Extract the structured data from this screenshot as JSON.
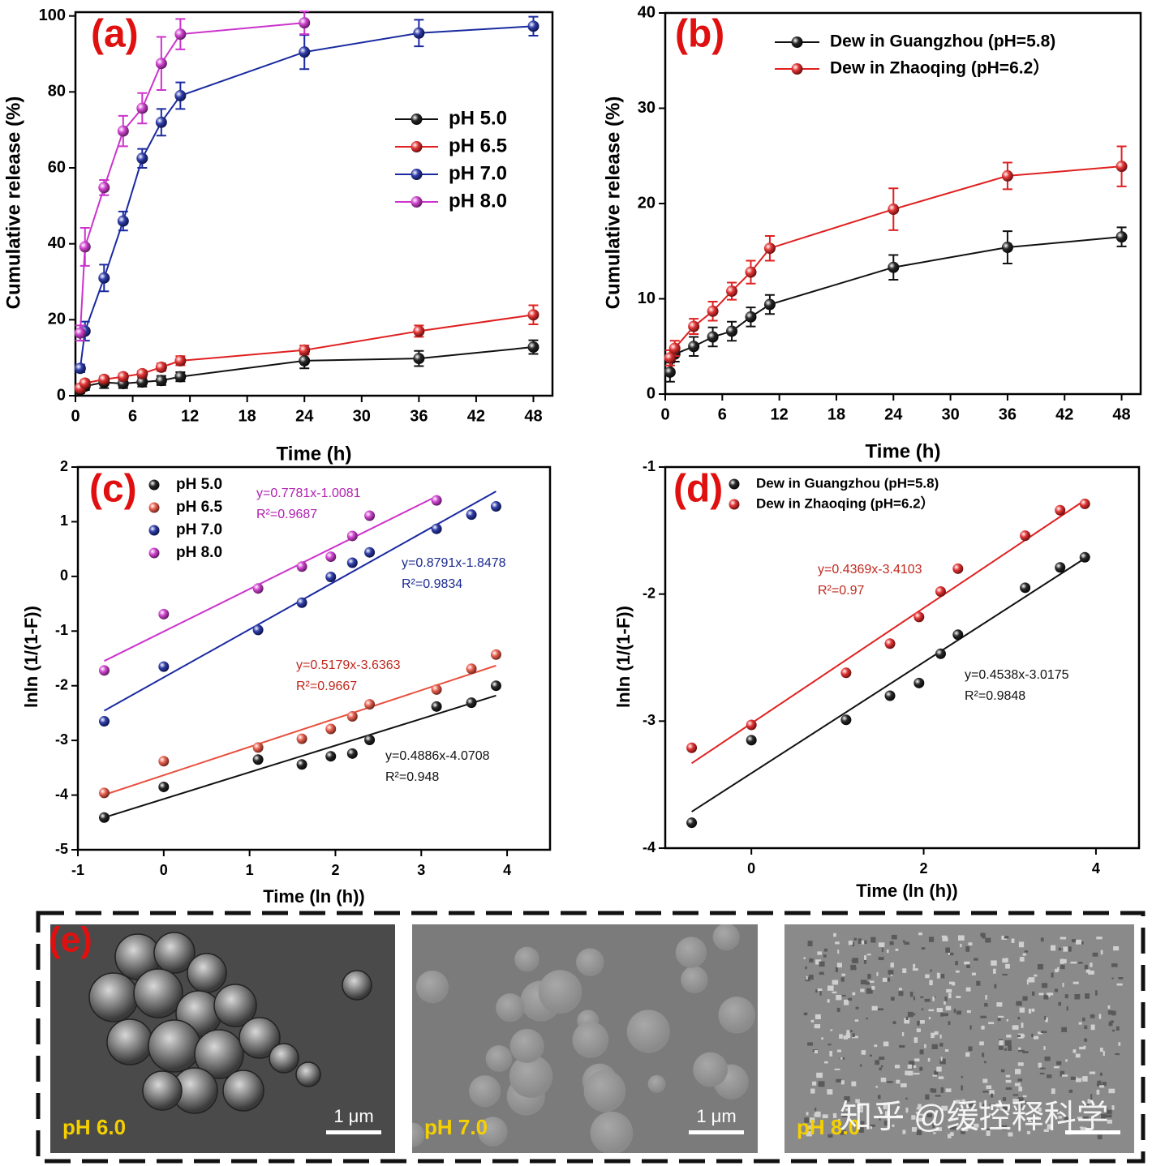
{
  "chart_data": [
    {
      "type": "line",
      "panel_label": "(a)",
      "xlabel": "Time (h)",
      "ylabel": "Cumulative release (%)",
      "x": [
        0.5,
        1,
        3,
        5,
        7,
        9,
        11,
        24,
        36,
        48
      ],
      "xlim": [
        0,
        50
      ],
      "ylim": [
        0,
        101
      ],
      "xticks": [
        0,
        6,
        12,
        18,
        24,
        30,
        36,
        42,
        48
      ],
      "yticks": [
        0,
        20,
        40,
        60,
        80,
        100
      ],
      "legend": "upper right",
      "series": [
        {
          "name": "pH 5.0",
          "color": "#111111",
          "values": [
            1.5,
            2.5,
            3.5,
            3.2,
            3.6,
            4.0,
            5.0,
            9.2,
            9.8,
            12.8
          ],
          "errors": [
            0.8,
            1,
            1.5,
            1.2,
            1.2,
            1.2,
            1.2,
            2,
            2,
            1.8
          ]
        },
        {
          "name": "pH 6.5",
          "color": "#e02020",
          "values": [
            2.0,
            3.3,
            4.3,
            5.0,
            5.8,
            7.5,
            9.2,
            12.0,
            17.0,
            21.3
          ],
          "errors": [
            0.8,
            0.8,
            0.8,
            0.8,
            0.8,
            1,
            1.2,
            1.2,
            1.5,
            2.5
          ]
        },
        {
          "name": "pH 7.0",
          "color": "#1a2aa0",
          "values": [
            7.2,
            17.0,
            31.0,
            46.0,
            62.5,
            72.0,
            79.0,
            90.5,
            95.5,
            97.3
          ],
          "errors": [
            1,
            2.5,
            3.5,
            2.5,
            2.5,
            3.5,
            3.5,
            4.5,
            3.5,
            2.5
          ]
        },
        {
          "name": "pH 8.0",
          "color": "#cc33cc",
          "values": [
            16.5,
            39.2,
            54.8,
            69.7,
            75.7,
            87.5,
            95.2,
            98.2,
            null,
            null
          ],
          "errors": [
            2,
            5,
            2,
            4,
            4,
            7,
            4,
            3,
            null,
            null
          ]
        }
      ]
    },
    {
      "type": "line",
      "panel_label": "(b)",
      "xlabel": "Time (h)",
      "ylabel": "Cumulative release (%)",
      "x": [
        0.5,
        1,
        3,
        5,
        7,
        9,
        11,
        24,
        36,
        48
      ],
      "xlim": [
        0,
        50
      ],
      "ylim": [
        0,
        40
      ],
      "xticks": [
        0,
        6,
        12,
        18,
        24,
        30,
        36,
        42,
        48
      ],
      "yticks": [
        0,
        10,
        20,
        30,
        40
      ],
      "legend": "upper left",
      "series": [
        {
          "name": "Dew in Guangzhou (pH=5.8)",
          "color": "#111111",
          "values": [
            2.3,
            4.2,
            5.0,
            6.0,
            6.6,
            8.1,
            9.4,
            13.3,
            15.4,
            16.5
          ],
          "errors": [
            1,
            0.8,
            1,
            1,
            1,
            1,
            1,
            1.3,
            1.7,
            1
          ]
        },
        {
          "name": "Dew in Zhaoqing (pH=6.2）",
          "color": "#e02020",
          "values": [
            3.8,
            4.8,
            7.1,
            8.7,
            10.8,
            12.8,
            15.3,
            19.4,
            22.9,
            23.9
          ],
          "errors": [
            0.8,
            0.8,
            0.8,
            1,
            0.9,
            1.2,
            1.3,
            2.2,
            1.4,
            2.1
          ]
        }
      ]
    },
    {
      "type": "scatter",
      "panel_label": "(c)",
      "xlabel": "Time (ln (h))",
      "ylabel": "lnln (1/(1-F))",
      "x": [
        -0.693,
        0,
        1.099,
        1.609,
        1.946,
        2.197,
        2.398,
        3.178,
        3.584,
        3.871
      ],
      "xlim": [
        -1,
        4.5
      ],
      "ylim": [
        -5,
        2
      ],
      "xticks": [
        -1,
        0,
        1,
        2,
        3,
        4
      ],
      "yticks": [
        -5,
        -4,
        -3,
        -2,
        -1,
        0,
        1,
        2
      ],
      "legend": "upper left",
      "series": [
        {
          "name": "pH 5.0",
          "color": "#111111",
          "values": [
            -4.41,
            -3.85,
            -3.35,
            -3.44,
            -3.29,
            -3.24,
            -2.99,
            -2.38,
            -2.31,
            -2.0
          ],
          "fit": {
            "slope": 0.4886,
            "intercept": -4.0708
          }
        },
        {
          "name": "pH 6.5",
          "color": "#e8503e",
          "values": [
            -3.96,
            -3.38,
            -3.13,
            -2.97,
            -2.79,
            -2.56,
            -2.34,
            -2.07,
            -1.69,
            -1.43
          ],
          "fit": {
            "slope": 0.5179,
            "intercept": -3.6363
          }
        },
        {
          "name": "pH 7.0",
          "color": "#1a2aa0",
          "values": [
            -2.65,
            -1.65,
            -0.98,
            -0.48,
            -0.01,
            0.25,
            0.44,
            0.87,
            1.13,
            1.28
          ],
          "fit": {
            "slope": 0.8791,
            "intercept": -1.8478
          }
        },
        {
          "name": "pH 8.0",
          "color": "#cc33cc",
          "values": [
            -1.72,
            -0.69,
            -0.22,
            0.18,
            0.36,
            0.74,
            1.11,
            1.39,
            null,
            null
          ],
          "fit": {
            "slope": 0.7781,
            "intercept": -1.0081
          }
        }
      ],
      "annotations": [
        {
          "text": "y=0.7781x-1.0081",
          "r2": "R²=0.9687",
          "color": "#b020b0"
        },
        {
          "text": "y=0.8791x-1.8478",
          "r2": "R²=0.9834",
          "color": "#1a2a90"
        },
        {
          "text": "y=0.5179x-3.6363",
          "r2": "R²=0.9667",
          "color": "#c0281e"
        },
        {
          "text": "y=0.4886x-4.0708",
          "r2": "R²=0.948",
          "color": "#111111"
        }
      ]
    },
    {
      "type": "scatter",
      "panel_label": "(d)",
      "xlabel": "Time (ln (h))",
      "ylabel": "lnln (1/(1-F))",
      "x": [
        -0.693,
        0,
        1.099,
        1.609,
        1.946,
        2.197,
        2.398,
        3.178,
        3.584,
        3.871
      ],
      "xlim": [
        -1,
        4.5
      ],
      "ylim": [
        -4,
        -1
      ],
      "xticks": [
        0,
        2,
        4
      ],
      "yticks": [
        -4,
        -3,
        -2,
        -1
      ],
      "legend": "upper left",
      "series": [
        {
          "name": "Dew in Guangzhou (pH=5.8)",
          "color": "#111111",
          "values": [
            -3.8,
            -3.15,
            -2.99,
            -2.8,
            -2.7,
            -2.47,
            -2.32,
            -1.95,
            -1.79,
            -1.71
          ],
          "fit": {
            "slope": 0.4369,
            "intercept": -3.4103
          }
        },
        {
          "name": "Dew in Zhaoqing (pH=6.2）",
          "color": "#e02020",
          "values": [
            -3.21,
            -3.03,
            -2.62,
            -2.39,
            -2.18,
            -1.98,
            -1.8,
            -1.54,
            -1.34,
            -1.29
          ],
          "fit": {
            "slope": 0.4538,
            "intercept": -3.0175
          }
        }
      ],
      "annotations": [
        {
          "text": "y=0.4369x-3.4103",
          "r2": "R²=0.97",
          "color": "#c0281e"
        },
        {
          "text": "y=0.4538x-3.0175",
          "r2": "R²=0.9848",
          "color": "#111111"
        }
      ]
    }
  ],
  "panel_e": {
    "label": "(e)",
    "images": [
      {
        "caption": "pH 6.0",
        "scale": "1 μm"
      },
      {
        "caption": "pH 7.0",
        "scale": "1 μm"
      },
      {
        "caption": "pH 8.0"
      }
    ],
    "watermark": "知乎 @缓控释科学"
  }
}
